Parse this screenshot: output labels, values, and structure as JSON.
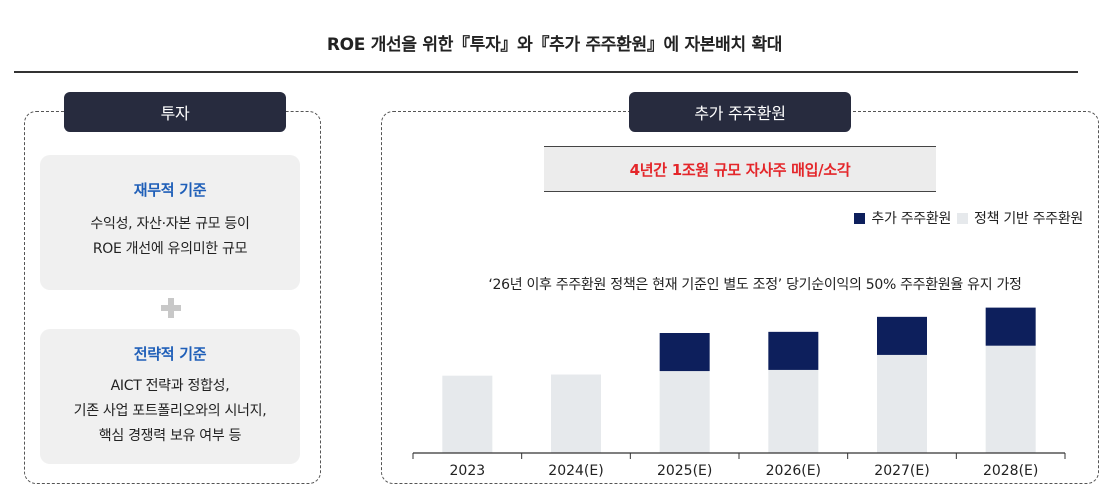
{
  "page_title": "ROE 개선을 위한『투자』와『추가 주주환원』에 자본배치 확대",
  "left_panel": {
    "tab_label": "투자",
    "criteria": [
      {
        "heading": "재무적 기준",
        "lines": [
          "수익성, 자산·자본 규모 등이",
          "ROE 개선에 유의미한 규모"
        ]
      },
      {
        "heading": "전략적 기준",
        "lines": [
          "AICT 전략과 정합성,",
          "기존 사업 포트폴리오와의 시너지,",
          "핵심 경쟁력 보유 여부 등"
        ]
      }
    ]
  },
  "right_panel": {
    "tab_label": "추가 주주환원",
    "highlight": "4년간 1조원 규모 자사주 매입/소각",
    "note": "‘26년 이후 주주환원 정책은 현재 기준인 별도 조정’ 당기순이익의 50% 주주환원율 유지 가정"
  },
  "colors": {
    "additional": "#0d1f5c",
    "policy": "#e6e9ec",
    "highlight_text": "#e4262a",
    "heading_blue": "#1f5fb8",
    "tab_bg": "#272b3e"
  },
  "chart_data": {
    "type": "bar",
    "stacked": true,
    "categories": [
      "2023",
      "2024(E)",
      "2025(E)",
      "2026(E)",
      "2027(E)",
      "2028(E)"
    ],
    "series": [
      {
        "name": "정책 기반 주주환원",
        "color": "#e6e9ec",
        "values": [
          67,
          68,
          71,
          72,
          85,
          93
        ]
      },
      {
        "name": "추가 주주환원",
        "color": "#0d1f5c",
        "values": [
          0,
          0,
          33,
          33,
          33,
          33
        ]
      }
    ],
    "legend_position": "top-right",
    "y_axis_visible": false,
    "grid": false
  }
}
